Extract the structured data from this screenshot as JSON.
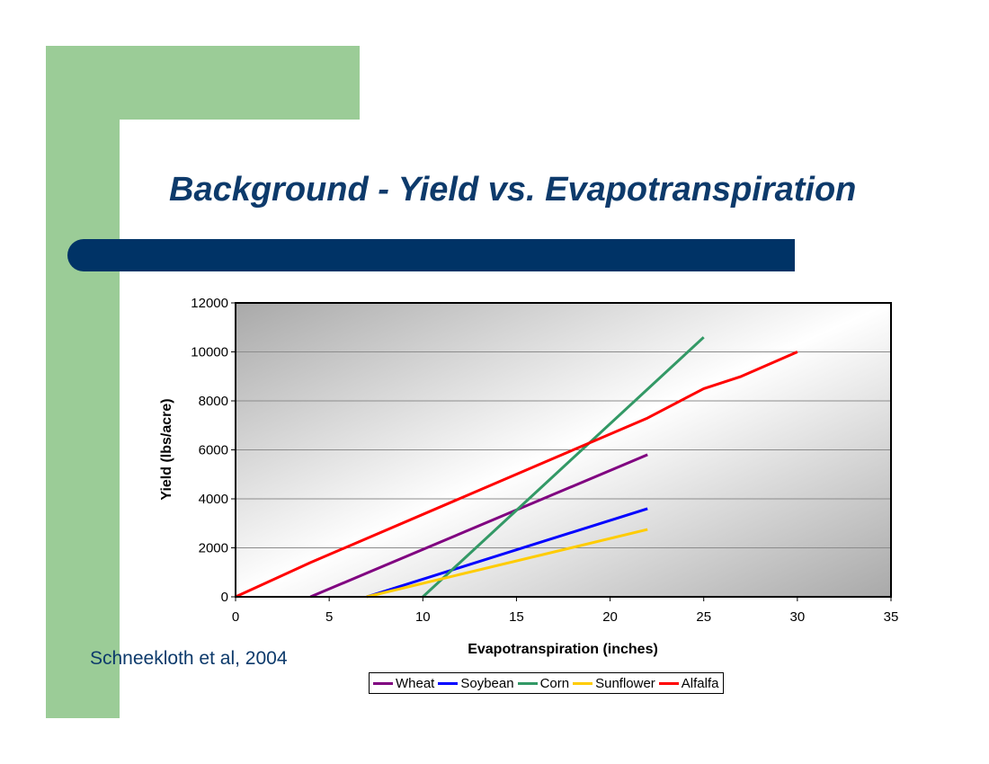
{
  "slide": {
    "title": "Background - Yield vs. Evapotranspiration",
    "citation": "Schneekloth et al, 2004"
  },
  "colors": {
    "accent_green": "#9bcc97",
    "title_blue": "#0d3a6b",
    "bar_navy": "#003366"
  },
  "chart_data": {
    "type": "line",
    "xlabel": "Evapotranspiration (inches)",
    "ylabel": "Yield (lbs/acre)",
    "xlim": [
      0,
      35
    ],
    "ylim": [
      0,
      12000
    ],
    "xticks": [
      "0",
      "5",
      "10",
      "15",
      "20",
      "25",
      "30",
      "35"
    ],
    "yticks": [
      "0",
      "2000",
      "4000",
      "6000",
      "8000",
      "10000",
      "12000"
    ],
    "grid": "horizontal",
    "legend_position": "bottom",
    "series": [
      {
        "name": "Wheat",
        "color": "#800080",
        "points": [
          [
            4,
            0
          ],
          [
            22,
            5800
          ]
        ]
      },
      {
        "name": "Soybean",
        "color": "#0000ff",
        "points": [
          [
            7,
            0
          ],
          [
            22,
            3600
          ]
        ]
      },
      {
        "name": "Corn",
        "color": "#339966",
        "points": [
          [
            10,
            0
          ],
          [
            25,
            10600
          ]
        ]
      },
      {
        "name": "Sunflower",
        "color": "#ffcc00",
        "points": [
          [
            7,
            0
          ],
          [
            22,
            2750
          ]
        ]
      },
      {
        "name": "Alfalfa",
        "color": "#ff0000",
        "points": [
          [
            0,
            0
          ],
          [
            1,
            350
          ],
          [
            4,
            1400
          ],
          [
            22,
            7300
          ],
          [
            25,
            8500
          ],
          [
            27,
            9000
          ],
          [
            30,
            10000
          ]
        ]
      }
    ]
  }
}
